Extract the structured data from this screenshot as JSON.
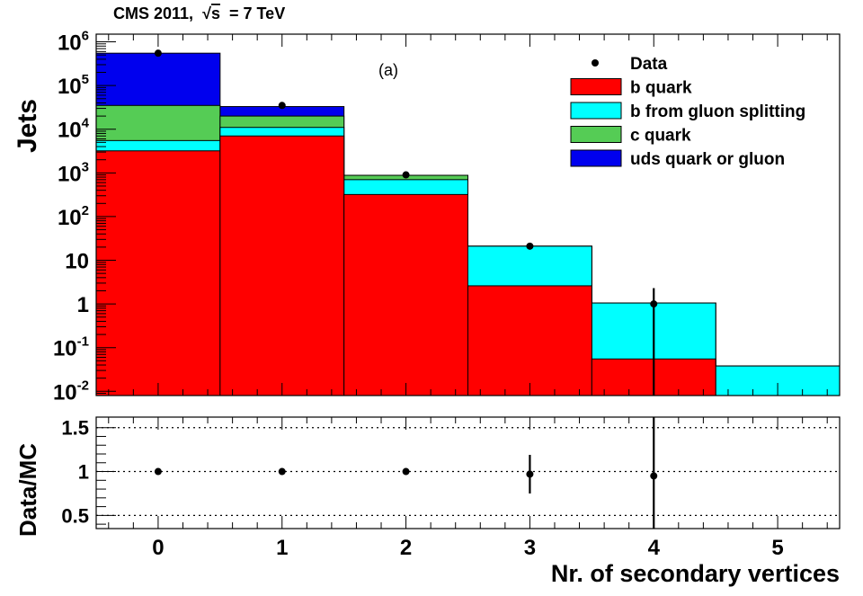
{
  "header": {
    "experiment": "CMS 2011,",
    "sqrt_symbol": "√",
    "s_var": "s",
    "energy": "= 7 TeV"
  },
  "chart_data": [
    {
      "type": "bar",
      "panel": "main",
      "annotation": "(a)",
      "ylabel": "Jets",
      "yscale": "log",
      "ylim": [
        0.008,
        1500000
      ],
      "xlim": [
        -0.5,
        5.5
      ],
      "grid": false,
      "legend_position": "top-right",
      "categories": [
        0,
        1,
        2,
        3,
        4,
        5
      ],
      "stacked": true,
      "yticks": [
        {
          "value": 0.01,
          "mant": "10",
          "exp": "-2"
        },
        {
          "value": 0.1,
          "mant": "10",
          "exp": "-1"
        },
        {
          "value": 1,
          "mant": "1",
          "exp": ""
        },
        {
          "value": 10,
          "mant": "10",
          "exp": ""
        },
        {
          "value": 100,
          "mant": "10",
          "exp": "2"
        },
        {
          "value": 1000,
          "mant": "10",
          "exp": "3"
        },
        {
          "value": 10000,
          "mant": "10",
          "exp": "4"
        },
        {
          "value": 100000,
          "mant": "10",
          "exp": "5"
        },
        {
          "value": 1000000,
          "mant": "10",
          "exp": "6"
        }
      ],
      "series": [
        {
          "name": "b quark",
          "color": "#ff0000",
          "cumulative": [
            3200,
            7000,
            320,
            2.6,
            0.055,
            0.008
          ]
        },
        {
          "name": "b from gluon splitting",
          "color": "#00ffff",
          "cumulative": [
            5500,
            11000,
            700,
            21,
            1.05,
            0.038
          ]
        },
        {
          "name": "c quark",
          "color": "#55cc55",
          "cumulative": [
            35000,
            20000,
            880,
            21,
            1.05,
            0.038
          ]
        },
        {
          "name": "uds quark or gluon",
          "color": "#0000ee",
          "cumulative": [
            550000,
            33000,
            880,
            21,
            1.05,
            0.038
          ]
        }
      ],
      "data_points": {
        "name": "Data",
        "x": [
          0,
          1,
          2,
          3,
          4
        ],
        "y": [
          550000,
          35000,
          900,
          21,
          1
        ],
        "yerr_low": [
          0,
          0,
          0,
          0,
          1
        ],
        "yerr_high": [
          0,
          0,
          0,
          0,
          1.3
        ]
      }
    },
    {
      "type": "scatter",
      "panel": "ratio",
      "ylabel": "Data/MC",
      "xlabel": "Nr. of secondary vertices",
      "ylim": [
        0.35,
        1.62
      ],
      "xlim": [
        -0.5,
        5.5
      ],
      "xticks": [
        "0",
        "1",
        "2",
        "3",
        "4",
        "5"
      ],
      "yticks": [
        "0.5",
        "1",
        "1.5"
      ],
      "ytick_values": [
        0.5,
        1,
        1.5
      ],
      "reference_lines": [
        0.5,
        1,
        1.5
      ],
      "x": [
        0,
        1,
        2,
        3,
        4
      ],
      "y": [
        1.0,
        1.0,
        1.0,
        0.97,
        0.95
      ],
      "yerr": [
        0.0,
        0.0,
        0.0,
        0.22,
        0.8
      ]
    }
  ]
}
